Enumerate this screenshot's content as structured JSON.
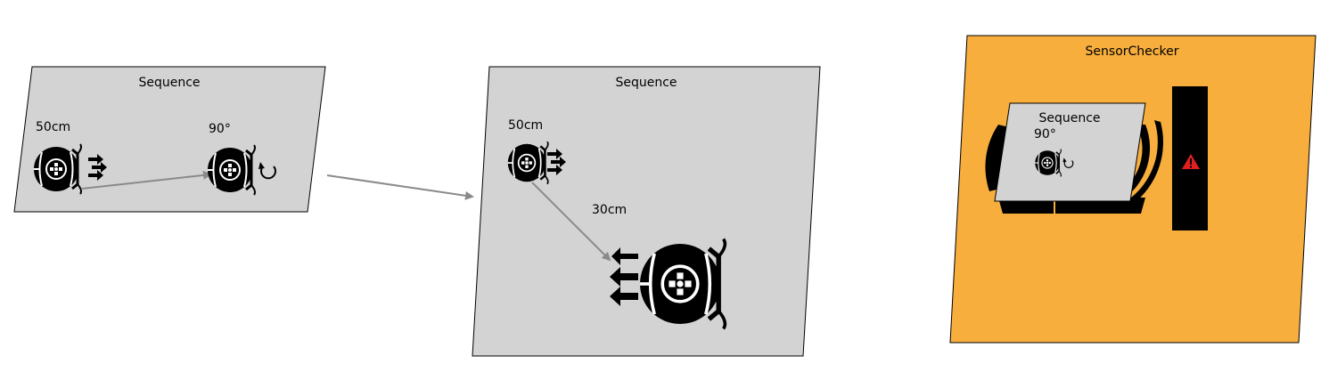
{
  "colors": {
    "canvas": "#ffffff",
    "panel_fill": "#d3d3d3",
    "sensor_fill": "#f7ae3d",
    "robot": "#000000",
    "connector": "#8a8a8a",
    "warning": "#e02020",
    "sensor_bar": "#000000"
  },
  "panels": {
    "seq1": {
      "title": "Sequence",
      "step1_label": "50cm",
      "step2_label": "90°"
    },
    "seq2": {
      "title": "Sequence",
      "step1_label": "50cm",
      "step2_label": "30cm"
    },
    "sensor": {
      "title": "SensorChecker",
      "inner": {
        "title": "Sequence",
        "step_label": "90°"
      }
    }
  },
  "icons": {
    "robot": "robot-wheel-icon",
    "forward": "forward-arrows-icon",
    "backward": "backward-arrows-icon",
    "rotate": "rotate-icon",
    "warning": "warning-triangle-icon",
    "arc": "sensor-arc-icon"
  }
}
